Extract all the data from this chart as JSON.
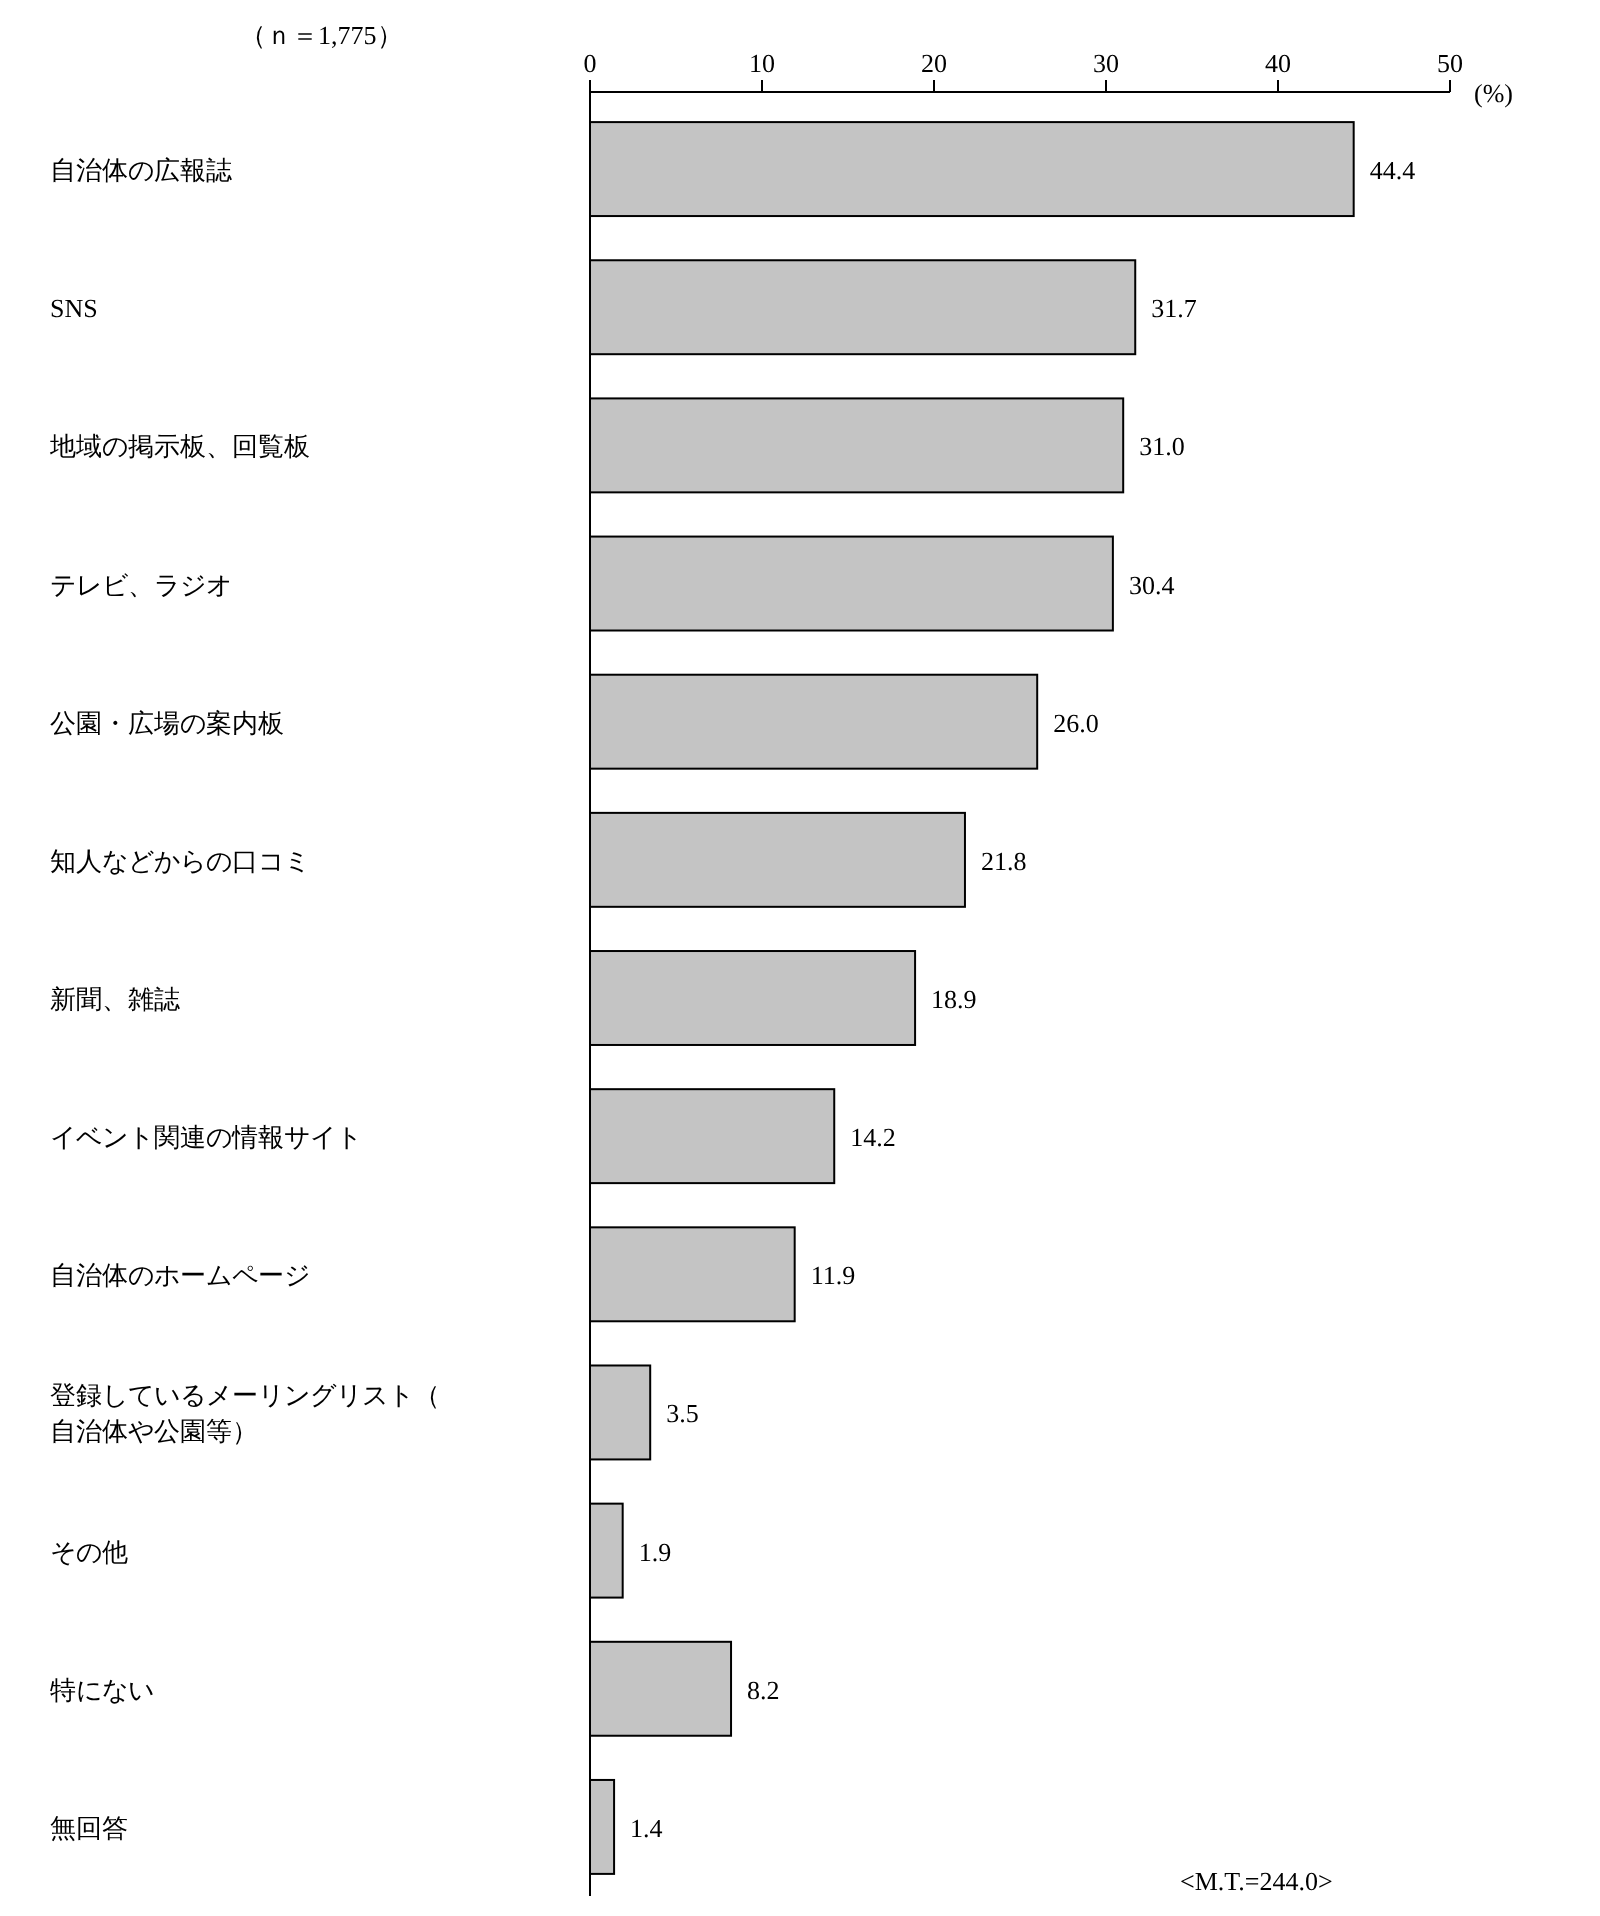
{
  "chart_data": {
    "type": "bar",
    "orientation": "horizontal",
    "categories": [
      "自治体の広報誌",
      "SNS",
      "地域の掲示板、回覧板",
      "テレビ、ラジオ",
      "公園・広場の案内板",
      "知人などからの口コミ",
      "新聞、雑誌",
      "イベント関連の情報サイト",
      "自治体のホームページ",
      "登録しているメーリングリスト（自治体や公園等）",
      "その他",
      "特にない",
      "無回答"
    ],
    "values": [
      44.4,
      31.7,
      31.0,
      30.4,
      26.0,
      21.8,
      18.9,
      14.2,
      11.9,
      3.5,
      1.9,
      8.2,
      1.4
    ],
    "value_labels": [
      "44.4",
      "31.7",
      "31.0",
      "30.4",
      "26.0",
      "21.8",
      "18.9",
      "14.2",
      "11.9",
      "3.5",
      "1.9",
      "8.2",
      "1.4"
    ],
    "color": "#c4c4c4",
    "xlim": [
      0,
      50
    ],
    "xticks": [
      0,
      10,
      20,
      30,
      40,
      50
    ],
    "xlabel": "(%)",
    "grid": false,
    "annotations": [
      "（ｎ＝1,775）",
      "<M.T.=244.0>"
    ]
  }
}
